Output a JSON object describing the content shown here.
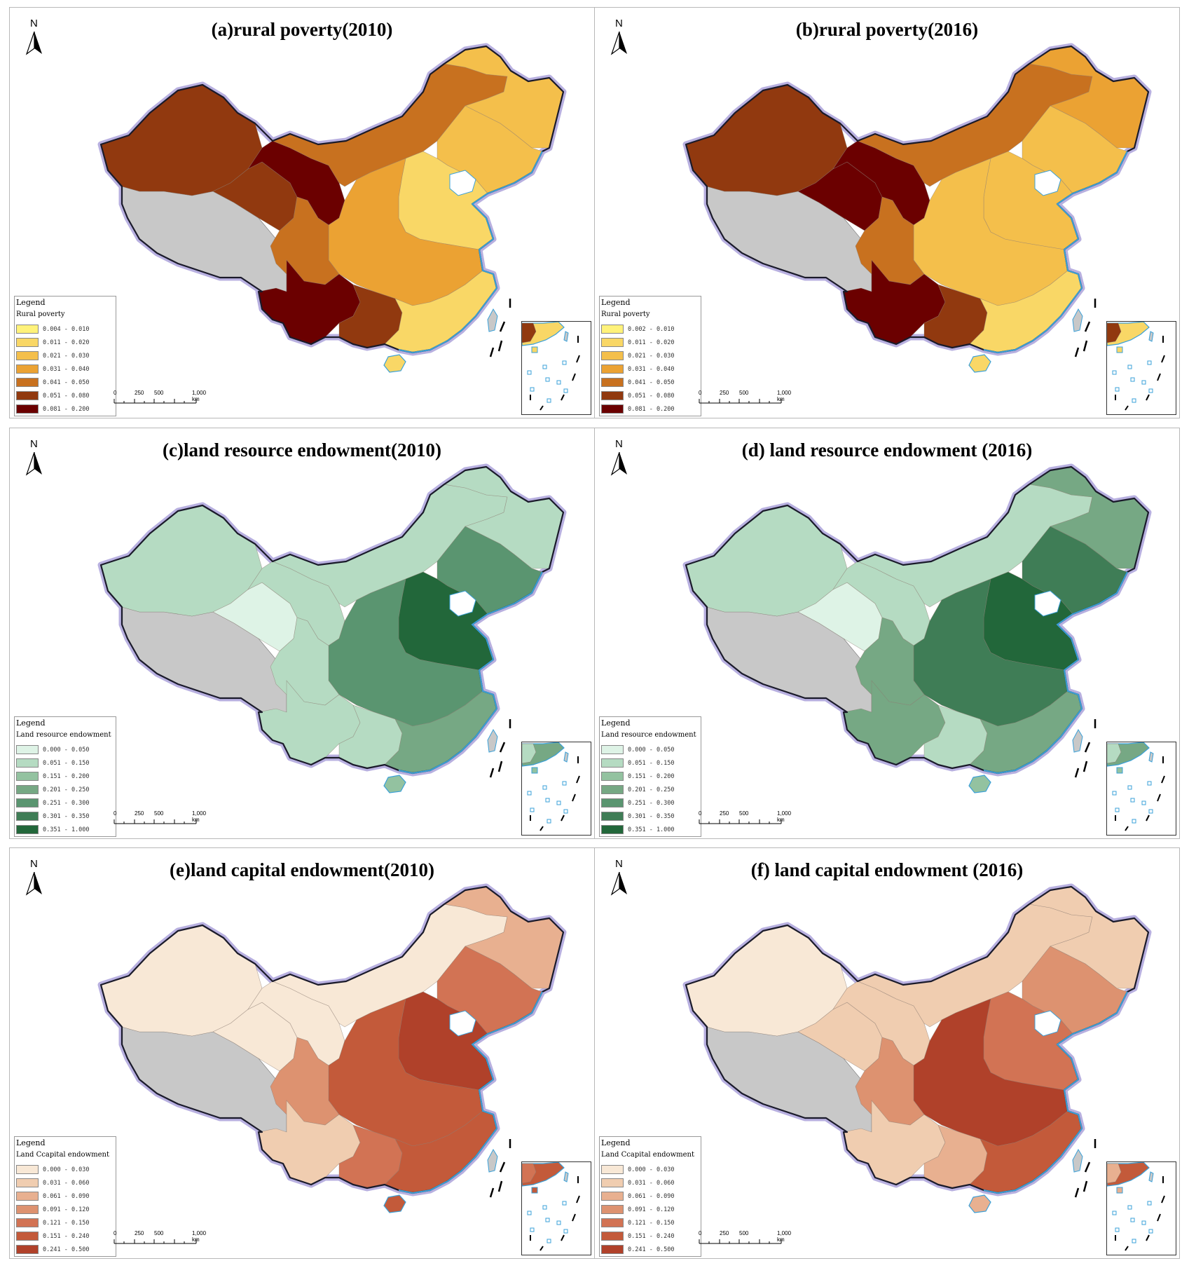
{
  "north_label": "N",
  "scale_ticks": [
    "0",
    "250",
    "500",
    "1,000 km"
  ],
  "legend_header": "Legend",
  "unmapped_color": "#c8c8c8",
  "panels": [
    {
      "title": "(a)rural poverty(2010)",
      "legend_name": "Rural poverty",
      "classes": [
        {
          "label": "0.004 - 0.010",
          "color": "#fff27a"
        },
        {
          "label": "0.011 - 0.020",
          "color": "#f9d766"
        },
        {
          "label": "0.021 - 0.030",
          "color": "#f4bf4b"
        },
        {
          "label": "0.031 - 0.040",
          "color": "#eba233"
        },
        {
          "label": "0.041 - 0.050",
          "color": "#c8711f"
        },
        {
          "label": "0.051 - 0.080",
          "color": "#91390f"
        },
        {
          "label": "0.081 - 0.200",
          "color": "#6b0000"
        }
      ]
    },
    {
      "title": "(b)rural poverty(2016)",
      "legend_name": "Rural poverty",
      "classes": [
        {
          "label": "0.002 - 0.010",
          "color": "#fff27a"
        },
        {
          "label": "0.011 - 0.020",
          "color": "#f9d766"
        },
        {
          "label": "0.021 - 0.030",
          "color": "#f4bf4b"
        },
        {
          "label": "0.031 - 0.040",
          "color": "#eba233"
        },
        {
          "label": "0.041 - 0.050",
          "color": "#c8711f"
        },
        {
          "label": "0.051 - 0.080",
          "color": "#91390f"
        },
        {
          "label": "0.081 - 0.200",
          "color": "#6b0000"
        }
      ]
    },
    {
      "title": "(c)land resource endowment(2010)",
      "legend_name": "Land resource endowment",
      "classes": [
        {
          "label": "0.000 - 0.050",
          "color": "#def3e6"
        },
        {
          "label": "0.051 - 0.150",
          "color": "#b5dbc2"
        },
        {
          "label": "0.151 - 0.200",
          "color": "#93c2a0"
        },
        {
          "label": "0.201 - 0.250",
          "color": "#76a884"
        },
        {
          "label": "0.251 - 0.300",
          "color": "#5a9570"
        },
        {
          "label": "0.301 - 0.350",
          "color": "#3f7d56"
        },
        {
          "label": "0.351 - 1.000",
          "color": "#22673a"
        }
      ]
    },
    {
      "title": "(d) land resource endowment (2016)",
      "legend_name": "Land resource endowment",
      "classes": [
        {
          "label": "0.000 - 0.050",
          "color": "#def3e6"
        },
        {
          "label": "0.051 - 0.150",
          "color": "#b5dbc2"
        },
        {
          "label": "0.151 - 0.200",
          "color": "#93c2a0"
        },
        {
          "label": "0.201 - 0.250",
          "color": "#76a884"
        },
        {
          "label": "0.251 - 0.300",
          "color": "#5a9570"
        },
        {
          "label": "0.301 - 0.350",
          "color": "#3f7d56"
        },
        {
          "label": "0.351 - 1.000",
          "color": "#22673a"
        }
      ]
    },
    {
      "title": "(e)land capital endowment(2010)",
      "legend_name": "Land Ccapital endowment",
      "classes": [
        {
          "label": "0.000 - 0.030",
          "color": "#f8e8d6"
        },
        {
          "label": "0.031 - 0.060",
          "color": "#f0cdb0"
        },
        {
          "label": "0.061 - 0.090",
          "color": "#e8b090"
        },
        {
          "label": "0.091 - 0.120",
          "color": "#dd9270"
        },
        {
          "label": "0.121 - 0.150",
          "color": "#d27354"
        },
        {
          "label": "0.151 - 0.240",
          "color": "#c35a3a"
        },
        {
          "label": "0.241 - 0.500",
          "color": "#b0412a"
        }
      ]
    },
    {
      "title": "(f) land capital endowment (2016)",
      "legend_name": "Land Ccapital endowment",
      "classes": [
        {
          "label": "0.000 - 0.030",
          "color": "#f8e8d6"
        },
        {
          "label": "0.031 - 0.060",
          "color": "#f0cdb0"
        },
        {
          "label": "0.061 - 0.090",
          "color": "#e8b090"
        },
        {
          "label": "0.091 - 0.120",
          "color": "#dd9270"
        },
        {
          "label": "0.121 - 0.150",
          "color": "#d27354"
        },
        {
          "label": "0.151 - 0.240",
          "color": "#c35a3a"
        },
        {
          "label": "0.241 - 0.500",
          "color": "#b0412a"
        }
      ]
    }
  ],
  "region_classes": [
    {
      "west": 5,
      "qinghai": 5,
      "gansu": 6,
      "inner_mongolia": 4,
      "northeast_north": 2,
      "northeast_south": 2,
      "north_plain": 1,
      "central": 3,
      "sichuan": 4,
      "yunnan": 6,
      "guangxi": 5,
      "southeast": 1,
      "hainan": 1
    },
    {
      "west": 5,
      "qinghai": 6,
      "gansu": 6,
      "inner_mongolia": 4,
      "northeast_north": 3,
      "northeast_south": 2,
      "north_plain": 2,
      "central": 2,
      "sichuan": 4,
      "yunnan": 6,
      "guangxi": 5,
      "southeast": 1,
      "hainan": 1
    },
    {
      "west": 1,
      "qinghai": 0,
      "gansu": 1,
      "inner_mongolia": 1,
      "northeast_north": 1,
      "northeast_south": 4,
      "north_plain": 6,
      "central": 4,
      "sichuan": 1,
      "yunnan": 1,
      "guangxi": 1,
      "southeast": 3,
      "hainan": 2
    },
    {
      "west": 1,
      "qinghai": 0,
      "gansu": 1,
      "inner_mongolia": 1,
      "northeast_north": 3,
      "northeast_south": 5,
      "north_plain": 6,
      "central": 5,
      "sichuan": 3,
      "yunnan": 3,
      "guangxi": 1,
      "southeast": 3,
      "hainan": 2
    },
    {
      "west": 0,
      "qinghai": 0,
      "gansu": 0,
      "inner_mongolia": 0,
      "northeast_north": 2,
      "northeast_south": 4,
      "north_plain": 6,
      "central": 5,
      "sichuan": 3,
      "yunnan": 1,
      "guangxi": 4,
      "southeast": 5,
      "hainan": 5
    },
    {
      "west": 0,
      "qinghai": 1,
      "gansu": 1,
      "inner_mongolia": 1,
      "northeast_north": 1,
      "northeast_south": 3,
      "north_plain": 4,
      "central": 6,
      "sichuan": 3,
      "yunnan": 1,
      "guangxi": 2,
      "southeast": 5,
      "hainan": 2
    }
  ]
}
